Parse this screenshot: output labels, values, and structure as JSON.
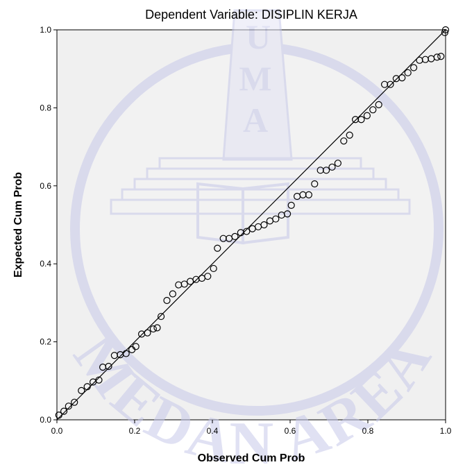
{
  "chart_data": {
    "type": "scatter",
    "title": "Dependent Variable: DISIPLIN KERJA",
    "xlabel": "Observed Cum Prob",
    "ylabel": "Expected Cum Prob",
    "xlim": [
      0,
      1
    ],
    "ylim": [
      0,
      1
    ],
    "xticks": [
      "0.0",
      "0.2",
      "0.4",
      "0.6",
      "0.8",
      "1.0"
    ],
    "yticks": [
      "0.0",
      "0.2",
      "0.4",
      "0.6",
      "0.8",
      "1.0"
    ],
    "grid": false,
    "reference_line": {
      "from": [
        0,
        0
      ],
      "to": [
        1,
        1
      ]
    },
    "colors": {
      "plot_background": "#f0f0f0",
      "marker_stroke": "#000000",
      "line": "#000000",
      "watermark": "#c7c9ea"
    },
    "points": [
      {
        "x": 0.005,
        "y": 0.012
      },
      {
        "x": 0.018,
        "y": 0.022
      },
      {
        "x": 0.03,
        "y": 0.035
      },
      {
        "x": 0.045,
        "y": 0.045
      },
      {
        "x": 0.063,
        "y": 0.075
      },
      {
        "x": 0.078,
        "y": 0.085
      },
      {
        "x": 0.093,
        "y": 0.097
      },
      {
        "x": 0.108,
        "y": 0.102
      },
      {
        "x": 0.118,
        "y": 0.135
      },
      {
        "x": 0.133,
        "y": 0.137
      },
      {
        "x": 0.148,
        "y": 0.165
      },
      {
        "x": 0.163,
        "y": 0.167
      },
      {
        "x": 0.178,
        "y": 0.17
      },
      {
        "x": 0.193,
        "y": 0.18
      },
      {
        "x": 0.203,
        "y": 0.188
      },
      {
        "x": 0.218,
        "y": 0.22
      },
      {
        "x": 0.233,
        "y": 0.223
      },
      {
        "x": 0.248,
        "y": 0.233
      },
      {
        "x": 0.258,
        "y": 0.236
      },
      {
        "x": 0.268,
        "y": 0.265
      },
      {
        "x": 0.283,
        "y": 0.306
      },
      {
        "x": 0.298,
        "y": 0.323
      },
      {
        "x": 0.313,
        "y": 0.346
      },
      {
        "x": 0.328,
        "y": 0.348
      },
      {
        "x": 0.343,
        "y": 0.355
      },
      {
        "x": 0.358,
        "y": 0.36
      },
      {
        "x": 0.373,
        "y": 0.363
      },
      {
        "x": 0.388,
        "y": 0.368
      },
      {
        "x": 0.403,
        "y": 0.388
      },
      {
        "x": 0.413,
        "y": 0.44
      },
      {
        "x": 0.428,
        "y": 0.465
      },
      {
        "x": 0.443,
        "y": 0.465
      },
      {
        "x": 0.458,
        "y": 0.47
      },
      {
        "x": 0.473,
        "y": 0.48
      },
      {
        "x": 0.488,
        "y": 0.483
      },
      {
        "x": 0.503,
        "y": 0.49
      },
      {
        "x": 0.518,
        "y": 0.495
      },
      {
        "x": 0.533,
        "y": 0.5
      },
      {
        "x": 0.548,
        "y": 0.51
      },
      {
        "x": 0.563,
        "y": 0.515
      },
      {
        "x": 0.578,
        "y": 0.525
      },
      {
        "x": 0.593,
        "y": 0.528
      },
      {
        "x": 0.603,
        "y": 0.55
      },
      {
        "x": 0.618,
        "y": 0.573
      },
      {
        "x": 0.633,
        "y": 0.577
      },
      {
        "x": 0.648,
        "y": 0.577
      },
      {
        "x": 0.663,
        "y": 0.605
      },
      {
        "x": 0.678,
        "y": 0.64
      },
      {
        "x": 0.693,
        "y": 0.64
      },
      {
        "x": 0.708,
        "y": 0.648
      },
      {
        "x": 0.723,
        "y": 0.658
      },
      {
        "x": 0.738,
        "y": 0.715
      },
      {
        "x": 0.753,
        "y": 0.73
      },
      {
        "x": 0.768,
        "y": 0.77
      },
      {
        "x": 0.783,
        "y": 0.77
      },
      {
        "x": 0.798,
        "y": 0.78
      },
      {
        "x": 0.813,
        "y": 0.795
      },
      {
        "x": 0.828,
        "y": 0.808
      },
      {
        "x": 0.843,
        "y": 0.86
      },
      {
        "x": 0.858,
        "y": 0.86
      },
      {
        "x": 0.873,
        "y": 0.875
      },
      {
        "x": 0.888,
        "y": 0.877
      },
      {
        "x": 0.903,
        "y": 0.89
      },
      {
        "x": 0.918,
        "y": 0.903
      },
      {
        "x": 0.933,
        "y": 0.922
      },
      {
        "x": 0.948,
        "y": 0.924
      },
      {
        "x": 0.963,
        "y": 0.926
      },
      {
        "x": 0.978,
        "y": 0.93
      },
      {
        "x": 0.988,
        "y": 0.932
      },
      {
        "x": 0.998,
        "y": 0.993
      },
      {
        "x": 1.0,
        "y": 1.0
      }
    ]
  },
  "watermark": {
    "top_letters": [
      "U",
      "M",
      "A"
    ],
    "arc_text": "MEDAN AREA"
  }
}
